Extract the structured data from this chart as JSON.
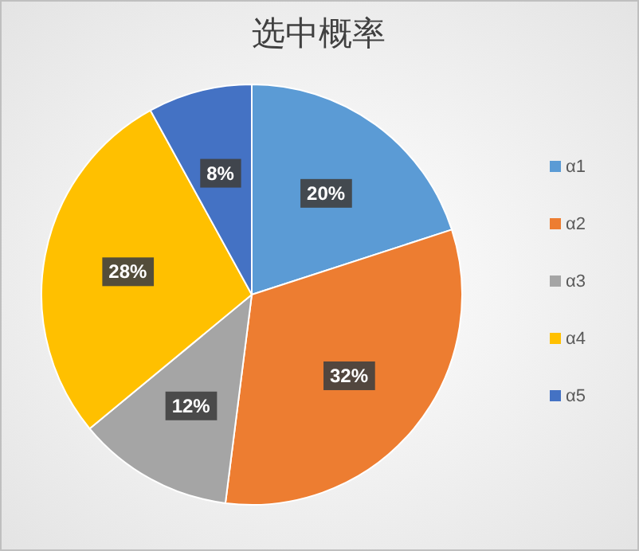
{
  "chart_data": {
    "type": "pie",
    "title": "选中概率",
    "categories": [
      "α1",
      "α2",
      "α3",
      "α4",
      "α5"
    ],
    "values": [
      20,
      32,
      12,
      28,
      8
    ],
    "colors": [
      "#5b9bd5",
      "#ed7d31",
      "#a5a5a5",
      "#ffc000",
      "#4472c4"
    ],
    "value_labels": [
      "20%",
      "32%",
      "12%",
      "28%",
      "8%"
    ],
    "legend": "right"
  }
}
